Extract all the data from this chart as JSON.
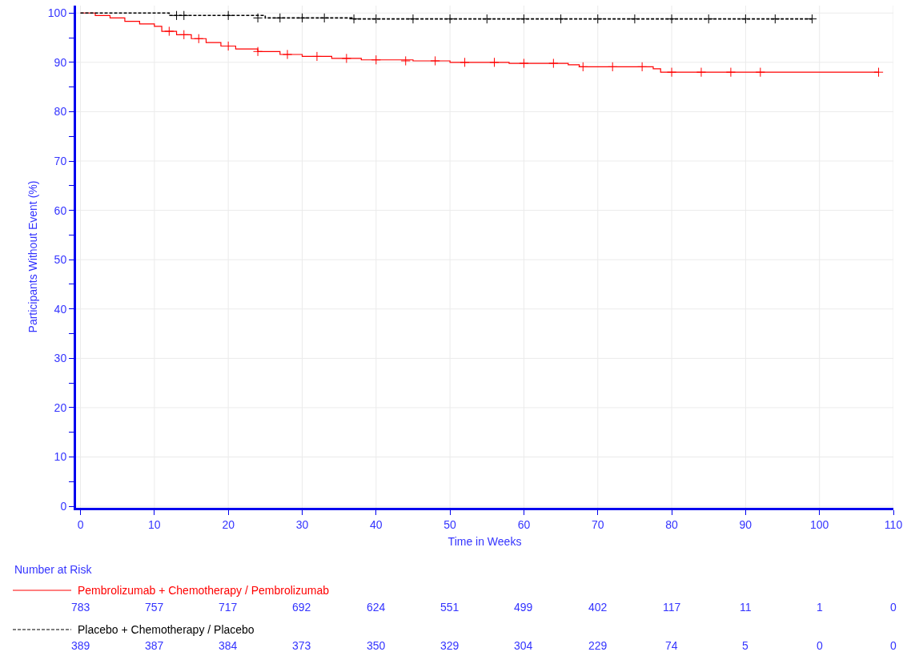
{
  "chart_data": {
    "type": "step",
    "xlabel": "Time in Weeks",
    "ylabel": "Participants Without Event (%)",
    "xlim": [
      -0.6,
      110
    ],
    "xticks": [
      0,
      10,
      20,
      30,
      40,
      50,
      60,
      70,
      80,
      90,
      100,
      110
    ],
    "ylim": [
      -0.3,
      101.5
    ],
    "yticks": [
      0,
      {
        "value": 5,
        "label": null
      },
      10,
      {
        "value": 15,
        "label": null
      },
      20,
      {
        "value": 25,
        "label": null
      },
      30,
      {
        "value": 35,
        "label": null
      },
      40,
      {
        "value": 45,
        "label": null
      },
      50,
      {
        "value": 55,
        "label": null
      },
      60,
      {
        "value": 65,
        "label": null
      },
      70,
      {
        "value": 75,
        "label": null
      },
      80,
      {
        "value": 85,
        "label": null
      },
      90,
      {
        "value": 95,
        "label": null
      },
      100
    ],
    "grid": true,
    "legend": "bottom",
    "series": [
      {
        "name": "Pembrolizumab + Chemotherapy / Pembrolizumab",
        "color": "#ff0000",
        "line_style": "solid",
        "x": [
          0,
          2,
          4,
          6,
          8,
          10,
          11,
          13,
          15,
          17,
          19,
          21,
          24,
          27,
          30,
          34,
          38,
          45,
          50,
          58,
          66,
          67.5,
          77.5,
          78.5,
          108
        ],
        "values": [
          100,
          99.5,
          99,
          98.3,
          97.8,
          97.3,
          96.3,
          95.6,
          94.8,
          94,
          93.3,
          92.7,
          92.2,
          91.6,
          91.2,
          90.8,
          90.5,
          90.3,
          90,
          89.8,
          89.5,
          89.1,
          88.7,
          88,
          88
        ]
      },
      {
        "name": "Placebo + Chemotherapy / Placebo",
        "color": "#000000",
        "line_style": "dashed",
        "x": [
          0,
          12,
          25,
          37,
          99
        ],
        "values": [
          100,
          99.5,
          99,
          98.8,
          98.8
        ]
      },
      {
        "type": "scatter",
        "marker": "cross",
        "color": "#ff0000",
        "x": [
          12,
          14,
          16,
          20,
          24,
          28,
          32,
          36,
          40,
          44,
          48,
          52,
          56,
          60,
          64,
          68,
          72,
          76,
          80,
          84,
          88,
          92,
          108
        ],
        "values": [
          96.3,
          95.6,
          94.8,
          93.3,
          92.2,
          91.6,
          91.2,
          90.8,
          90.5,
          90.3,
          90.3,
          90,
          90,
          89.8,
          89.8,
          89.1,
          89.1,
          89.1,
          88,
          88,
          88,
          88,
          88
        ]
      },
      {
        "type": "scatter",
        "marker": "cross",
        "color": "#000000",
        "x": [
          13,
          14,
          20,
          24,
          27,
          30,
          33,
          37,
          40,
          45,
          50,
          55,
          60,
          65,
          70,
          75,
          80,
          85,
          90,
          94,
          99
        ],
        "values": [
          99.5,
          99.5,
          99.5,
          99,
          99,
          99,
          99,
          98.8,
          98.8,
          98.8,
          98.8,
          98.8,
          98.8,
          98.8,
          98.8,
          98.8,
          98.8,
          98.8,
          98.8,
          98.8,
          98.8
        ]
      }
    ],
    "annotations": [
      "Number at Risk",
      "783",
      "757",
      "717",
      "692",
      "624",
      "551",
      "499",
      "402",
      "117",
      "11",
      "1",
      "0",
      "389",
      "387",
      "384",
      "373",
      "350",
      "329",
      "304",
      "229",
      "74",
      "5",
      "0",
      "0"
    ]
  }
}
